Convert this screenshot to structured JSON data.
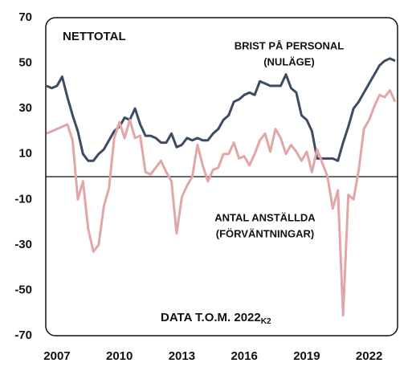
{
  "chart_data": {
    "type": "line",
    "title": "NETTOTAL",
    "note": "DATA T.O.M. 2022",
    "note_sub": "K2",
    "categories": [
      null,
      null,
      "2007",
      null,
      null,
      null,
      null,
      null,
      null,
      null,
      null,
      null,
      null,
      null,
      "2010",
      null,
      null,
      null,
      null,
      null,
      null,
      null,
      null,
      null,
      null,
      null,
      "2013",
      null,
      null,
      null,
      null,
      null,
      null,
      null,
      null,
      null,
      null,
      null,
      "2016",
      null,
      null,
      null,
      null,
      null,
      null,
      null,
      null,
      null,
      null,
      null,
      "2019",
      null,
      null,
      null,
      null,
      null,
      null,
      null,
      null,
      null,
      null,
      null,
      "2022",
      null,
      null,
      null,
      null,
      null
    ],
    "series": [
      {
        "name": "BRIST PÅ PERSONAL",
        "subname": "(NULÄGE)",
        "color": "#3d4b63",
        "values": [
          40,
          39,
          40,
          44,
          35,
          27,
          20,
          10,
          7,
          7,
          10,
          12,
          16,
          20,
          22,
          26,
          25,
          30,
          23,
          18,
          18,
          17,
          15,
          15,
          19,
          13,
          14,
          17,
          16,
          17,
          16,
          16,
          19,
          21,
          25,
          27,
          33,
          34,
          36,
          37,
          36,
          42,
          41,
          40,
          40,
          40,
          45,
          39,
          37,
          27,
          25,
          20,
          8,
          8,
          8,
          8,
          7,
          15,
          22,
          30,
          33,
          37,
          41,
          45,
          49,
          51,
          52,
          51
        ]
      },
      {
        "name": "ANTAL ANSTÄLLDA",
        "subname": "(FÖRVÄNTNINGAR)",
        "color": "#e2a6a6",
        "values": [
          19,
          20,
          21,
          22,
          23,
          16,
          -10,
          -2,
          -23,
          -33,
          -30,
          -13,
          -5,
          17,
          24,
          17,
          25,
          17,
          18,
          2,
          1,
          4,
          7,
          2,
          -2,
          -25,
          -9,
          -4,
          0,
          14,
          5,
          -2,
          3,
          4,
          10,
          10,
          15,
          8,
          9,
          5,
          10,
          16,
          19,
          11,
          21,
          17,
          10,
          14,
          11,
          7,
          11,
          2,
          12,
          6,
          0,
          -14,
          -6,
          -61,
          -8,
          -10,
          3,
          21,
          25,
          31,
          36,
          35,
          38,
          33
        ]
      }
    ],
    "ylim": [
      -70,
      70
    ],
    "yticks": [
      -70,
      -50,
      -30,
      -10,
      10,
      30,
      50,
      70
    ],
    "zero_line": true
  }
}
